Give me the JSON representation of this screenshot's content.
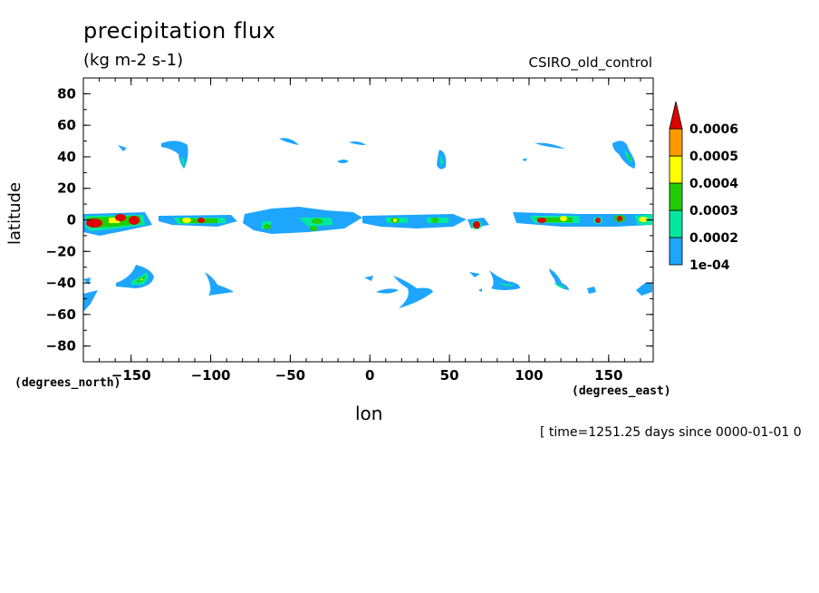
{
  "header": {
    "title": "precipitation flux",
    "units": "(kg m-2 s-1)",
    "model": "CSIRO_old_control",
    "time_stamp": "[ time=1251.25 days since 0000-01-01 0"
  },
  "chart_data": {
    "type": "heatmap",
    "title": "precipitation flux",
    "xlabel": "lon",
    "ylabel": "latitude",
    "x_units": "(degrees_east)",
    "y_units": "(degrees_north)",
    "xlim": [
      -180,
      178
    ],
    "ylim": [
      -90,
      90
    ],
    "xticks": [
      -150,
      -100,
      -50,
      0,
      50,
      100,
      150
    ],
    "xtick_labels": [
      "-150",
      "-100",
      "-50",
      "0",
      "50",
      "100",
      "150"
    ],
    "yticks": [
      80,
      60,
      40,
      20,
      0,
      -20,
      -40,
      -60,
      -80
    ],
    "ytick_labels": [
      "80",
      "60",
      "40",
      "20",
      "0",
      "-20",
      "-40",
      "-60",
      "-80"
    ],
    "colorbar": {
      "levels": [
        0.0001,
        0.0002,
        0.0003,
        0.0004,
        0.0005,
        0.0006
      ],
      "labels": [
        "1e-04",
        "0.0002",
        "0.0003",
        "0.0004",
        "0.0005",
        "0.0006"
      ],
      "colors": [
        "#1ea6ff",
        "#00e8a0",
        "#22cc00",
        "#ffff00",
        "#ff9900",
        "#e00000"
      ]
    },
    "features": [
      {
        "lon": -170,
        "lat": 0,
        "dlon": 10,
        "dlat": 4,
        "level": 5
      },
      {
        "lon": -150,
        "lat": 0,
        "dlon": 8,
        "dlat": 4,
        "level": 5
      },
      {
        "lon": -160,
        "lat": 0,
        "dlon": 20,
        "dlat": 4,
        "level": 3
      },
      {
        "lon": -115,
        "lat": 0,
        "dlon": 20,
        "dlat": 4,
        "level": 3
      },
      {
        "lon": -60,
        "lat": 0,
        "dlon": 15,
        "dlat": 5,
        "level": 1
      },
      {
        "lon": -35,
        "lat": 0,
        "dlon": 20,
        "dlat": 4,
        "level": 2
      },
      {
        "lon": 15,
        "lat": 0,
        "dlon": 15,
        "dlat": 4,
        "level": 3
      },
      {
        "lon": 40,
        "lat": 0,
        "dlon": 15,
        "dlat": 4,
        "level": 2
      },
      {
        "lon": 68,
        "lat": -3,
        "dlon": 4,
        "dlat": 4,
        "level": 5
      },
      {
        "lon": 110,
        "lat": 0,
        "dlon": 15,
        "dlat": 4,
        "level": 5
      },
      {
        "lon": 140,
        "lat": 0,
        "dlon": 6,
        "dlat": 3,
        "level": 5
      },
      {
        "lon": 158,
        "lat": 0,
        "dlon": 6,
        "dlat": 4,
        "level": 5
      },
      {
        "lon": 172,
        "lat": 0,
        "dlon": 6,
        "dlat": 4,
        "level": 3
      },
      {
        "lon": -118,
        "lat": 40,
        "dlon": 6,
        "dlat": 10,
        "level": 2
      },
      {
        "lon": 45,
        "lat": 37,
        "dlon": 5,
        "dlat": 8,
        "level": 2
      },
      {
        "lon": 160,
        "lat": 40,
        "dlon": 8,
        "dlat": 12,
        "level": 2
      },
      {
        "lon": -143,
        "lat": -40,
        "dlon": 15,
        "dlat": 6,
        "level": 3
      },
      {
        "lon": 120,
        "lat": -40,
        "dlon": 10,
        "dlat": 5,
        "level": 2
      },
      {
        "lon": 30,
        "lat": -47,
        "dlon": 15,
        "dlat": 7,
        "level": 1
      },
      {
        "lon": 83,
        "lat": -42,
        "dlon": 12,
        "dlat": 6,
        "level": 1
      }
    ]
  }
}
